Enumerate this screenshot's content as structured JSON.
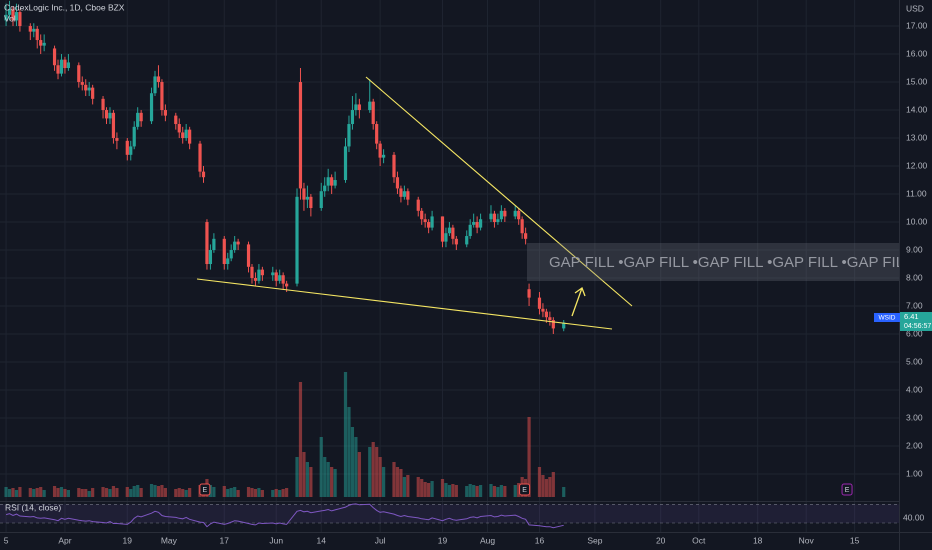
{
  "header": {
    "symbol_line": "CodexLogic Inc., 1D, Cboe BZX",
    "volume_label": "Vol",
    "currency": "USD"
  },
  "chart_data": {
    "type": "candlestick",
    "ylim": [
      0,
      17.93
    ],
    "yticks": [
      {
        "value": 1,
        "label": "1.00"
      },
      {
        "value": 2,
        "label": "2.00"
      },
      {
        "value": 3,
        "label": "3.00"
      },
      {
        "value": 4,
        "label": "4.00"
      },
      {
        "value": 5,
        "label": "5.00"
      },
      {
        "value": 6,
        "label": "6.00"
      },
      {
        "value": 7,
        "label": "7.00"
      },
      {
        "value": 8,
        "label": "8.00"
      },
      {
        "value": 9,
        "label": "9.00"
      },
      {
        "value": 10,
        "label": "10.00"
      },
      {
        "value": 11,
        "label": "11.00"
      },
      {
        "value": 12,
        "label": "12.00"
      },
      {
        "value": 13,
        "label": "13.00"
      },
      {
        "value": 14,
        "label": "14.00"
      },
      {
        "value": 15,
        "label": "15.00"
      },
      {
        "value": 16,
        "label": "16.00"
      },
      {
        "value": 17,
        "label": "17.00"
      }
    ],
    "xlim": [
      -18.75,
      240.8
    ],
    "xticks": [
      {
        "value": -17,
        "label": "5"
      },
      {
        "value": 0,
        "label": "Apr"
      },
      {
        "value": 18,
        "label": "19"
      },
      {
        "value": 30,
        "label": "May"
      },
      {
        "value": 46,
        "label": "17"
      },
      {
        "value": 61,
        "label": "Jun"
      },
      {
        "value": 74,
        "label": "14"
      },
      {
        "value": 91,
        "label": "Jul"
      },
      {
        "value": 109,
        "label": "19"
      },
      {
        "value": 122,
        "label": "Aug"
      },
      {
        "value": 137,
        "label": "16"
      },
      {
        "value": 153,
        "label": "Sep"
      },
      {
        "value": 172,
        "label": "20"
      },
      {
        "value": 183,
        "label": "Oct"
      },
      {
        "value": 200,
        "label": "18"
      },
      {
        "value": 214,
        "label": "Nov"
      },
      {
        "value": 228,
        "label": "15"
      }
    ],
    "grid": true,
    "up_color": "#26a69a",
    "down_color": "#ef5350",
    "volume_up_color": "rgba(38,166,154,0.5)",
    "volume_down_color": "rgba(239,83,80,0.5)",
    "vlim": [
      0,
      130
    ],
    "candles": [
      [
        -17,
        17.2,
        17.8,
        17.0,
        17.4,
        10,
        48
      ],
      [
        -16,
        17.4,
        17.9,
        17.2,
        17.6,
        8,
        50
      ],
      [
        -15,
        17.6,
        17.7,
        17.0,
        17.2,
        9,
        46
      ],
      [
        -14,
        17.2,
        17.8,
        17.0,
        17.5,
        7,
        49
      ],
      [
        -13,
        17.5,
        17.6,
        16.8,
        17.0,
        10,
        45
      ],
      [
        -10,
        17.0,
        17.1,
        16.5,
        16.8,
        9,
        43
      ],
      [
        -9,
        16.8,
        17.1,
        16.6,
        16.9,
        8,
        44
      ],
      [
        -8,
        16.9,
        17.0,
        16.2,
        16.5,
        9,
        41
      ],
      [
        -7,
        16.5,
        16.7,
        16.0,
        16.3,
        10,
        40
      ],
      [
        -6,
        16.3,
        16.7,
        16.1,
        16.4,
        7,
        41
      ],
      [
        -3,
        16.2,
        16.3,
        15.4,
        15.6,
        11,
        37
      ],
      [
        -2,
        15.6,
        15.8,
        15.1,
        15.3,
        9,
        35
      ],
      [
        -1,
        15.3,
        16.0,
        15.2,
        15.8,
        10,
        40
      ],
      [
        0,
        15.8,
        15.9,
        15.3,
        15.5,
        8,
        38
      ],
      [
        1,
        15.5,
        16.0,
        15.4,
        15.7,
        7,
        40
      ],
      [
        4,
        15.6,
        15.7,
        14.8,
        15.0,
        9,
        36
      ],
      [
        5,
        15.0,
        15.2,
        14.7,
        14.9,
        8,
        35
      ],
      [
        6,
        14.9,
        15.1,
        14.5,
        14.7,
        8,
        34
      ],
      [
        7,
        14.7,
        15.0,
        14.5,
        14.8,
        6,
        35
      ],
      [
        8,
        14.8,
        14.9,
        14.2,
        14.4,
        9,
        33
      ],
      [
        11,
        14.4,
        14.5,
        13.7,
        14.0,
        10,
        31
      ],
      [
        12,
        14.0,
        14.1,
        13.5,
        13.7,
        9,
        30
      ],
      [
        13,
        13.7,
        14.1,
        13.5,
        13.9,
        8,
        33
      ],
      [
        14,
        13.9,
        14.0,
        12.8,
        13.0,
        11,
        29
      ],
      [
        15,
        13.0,
        13.2,
        12.6,
        12.9,
        9,
        29
      ],
      [
        18,
        12.9,
        13.0,
        12.2,
        12.4,
        10,
        27
      ],
      [
        19,
        12.4,
        12.9,
        12.2,
        12.7,
        8,
        32
      ],
      [
        20,
        12.7,
        13.6,
        12.6,
        13.4,
        11,
        40
      ],
      [
        21,
        13.4,
        14.1,
        13.3,
        13.9,
        12,
        45
      ],
      [
        22,
        13.9,
        14.0,
        13.4,
        13.6,
        9,
        43
      ],
      [
        25,
        13.6,
        14.8,
        13.5,
        14.6,
        13,
        51
      ],
      [
        26,
        14.6,
        15.4,
        14.5,
        15.2,
        12,
        55
      ],
      [
        27,
        15.2,
        15.6,
        14.8,
        15.0,
        11,
        53
      ],
      [
        28,
        15.0,
        15.1,
        13.8,
        14.0,
        12,
        46
      ],
      [
        29,
        14.0,
        14.2,
        13.6,
        13.8,
        9,
        44
      ],
      [
        32,
        13.8,
        13.9,
        13.3,
        13.5,
        8,
        42
      ],
      [
        33,
        13.5,
        13.7,
        13.0,
        13.2,
        9,
        40
      ],
      [
        34,
        13.2,
        13.4,
        12.8,
        13.0,
        8,
        39
      ],
      [
        35,
        13.0,
        13.5,
        12.9,
        13.3,
        7,
        42
      ],
      [
        36,
        13.3,
        13.4,
        12.6,
        12.8,
        9,
        38
      ],
      [
        39,
        12.8,
        12.9,
        11.6,
        11.8,
        12,
        32
      ],
      [
        40,
        11.8,
        12.0,
        11.4,
        11.6,
        10,
        31
      ],
      [
        41,
        10.0,
        10.1,
        8.3,
        8.5,
        18,
        22
      ],
      [
        42,
        8.5,
        9.2,
        8.3,
        9.0,
        12,
        28
      ],
      [
        43,
        9.0,
        9.6,
        8.9,
        9.4,
        10,
        32
      ],
      [
        46,
        9.4,
        9.5,
        8.3,
        8.5,
        11,
        27
      ],
      [
        47,
        8.5,
        8.9,
        8.3,
        8.7,
        8,
        29
      ],
      [
        48,
        8.7,
        9.2,
        8.6,
        9.0,
        9,
        32
      ],
      [
        49,
        9.0,
        9.5,
        8.9,
        9.3,
        10,
        35
      ],
      [
        50,
        9.3,
        9.4,
        9.0,
        9.2,
        7,
        34
      ],
      [
        53,
        9.2,
        9.3,
        8.2,
        8.4,
        10,
        29
      ],
      [
        54,
        8.4,
        8.5,
        7.8,
        8.0,
        9,
        27
      ],
      [
        55,
        8.0,
        8.2,
        7.7,
        7.9,
        8,
        26
      ],
      [
        56,
        7.9,
        8.5,
        7.8,
        8.3,
        9,
        30
      ],
      [
        57,
        8.3,
        8.4,
        7.9,
        8.1,
        7,
        29
      ],
      [
        60,
        8.1,
        8.4,
        7.9,
        8.2,
        7,
        30
      ],
      [
        61,
        8.2,
        8.3,
        7.7,
        7.9,
        8,
        28
      ],
      [
        62,
        7.9,
        8.3,
        7.8,
        8.1,
        7,
        30
      ],
      [
        63,
        8.1,
        8.2,
        7.6,
        7.8,
        8,
        28
      ],
      [
        64,
        7.8,
        7.9,
        7.5,
        7.7,
        9,
        27
      ],
      [
        67,
        7.8,
        11.2,
        7.7,
        10.9,
        40,
        55
      ],
      [
        68,
        15.0,
        15.5,
        10.8,
        11.2,
        115,
        57
      ],
      [
        69,
        11.2,
        11.4,
        10.4,
        10.8,
        45,
        54
      ],
      [
        70,
        10.8,
        11.3,
        10.5,
        10.9,
        35,
        55
      ],
      [
        71,
        10.9,
        11.0,
        10.2,
        10.5,
        30,
        52
      ],
      [
        74,
        10.5,
        11.4,
        10.4,
        11.1,
        60,
        56
      ],
      [
        75,
        11.1,
        11.6,
        10.9,
        11.3,
        40,
        57
      ],
      [
        76,
        11.3,
        11.9,
        11.1,
        11.6,
        35,
        59
      ],
      [
        77,
        11.6,
        11.7,
        11.0,
        11.3,
        30,
        56
      ],
      [
        78,
        11.3,
        11.8,
        11.2,
        11.5,
        28,
        58
      ],
      [
        81,
        11.5,
        13.0,
        11.4,
        12.7,
        125,
        64
      ],
      [
        82,
        12.7,
        13.8,
        12.5,
        13.5,
        90,
        68
      ],
      [
        83,
        13.5,
        14.5,
        13.3,
        14.0,
        70,
        70
      ],
      [
        84,
        14.0,
        14.6,
        13.8,
        14.2,
        60,
        71
      ],
      [
        85,
        14.2,
        14.4,
        13.7,
        14.0,
        45,
        69
      ],
      [
        88,
        14.0,
        15.1,
        13.9,
        14.3,
        50,
        70
      ],
      [
        89,
        14.3,
        14.4,
        13.3,
        13.5,
        55,
        63
      ],
      [
        90,
        13.5,
        13.6,
        12.6,
        12.8,
        50,
        57
      ],
      [
        91,
        12.8,
        12.9,
        12.0,
        12.3,
        40,
        53
      ],
      [
        92,
        12.3,
        12.6,
        12.1,
        12.4,
        30,
        54
      ],
      [
        95,
        12.4,
        12.5,
        11.4,
        11.6,
        35,
        49
      ],
      [
        96,
        11.6,
        11.8,
        11.0,
        11.2,
        30,
        46
      ],
      [
        97,
        11.2,
        11.3,
        10.7,
        10.9,
        28,
        44
      ],
      [
        98,
        10.9,
        11.3,
        10.8,
        11.1,
        20,
        46
      ],
      [
        99,
        11.1,
        11.2,
        10.6,
        10.8,
        22,
        44
      ],
      [
        102,
        10.8,
        10.9,
        10.2,
        10.4,
        20,
        41
      ],
      [
        103,
        10.4,
        10.5,
        9.9,
        10.1,
        18,
        39
      ],
      [
        104,
        10.1,
        10.3,
        9.8,
        10.0,
        15,
        38
      ],
      [
        105,
        10.0,
        10.1,
        9.6,
        9.8,
        14,
        37
      ],
      [
        106,
        9.8,
        10.4,
        9.7,
        10.2,
        16,
        41
      ],
      [
        109,
        10.2,
        10.2,
        9.1,
        9.3,
        18,
        35
      ],
      [
        110,
        9.3,
        9.8,
        9.1,
        9.6,
        14,
        38
      ],
      [
        111,
        9.6,
        10.0,
        9.5,
        9.8,
        12,
        40
      ],
      [
        112,
        9.8,
        9.9,
        9.2,
        9.4,
        13,
        37
      ],
      [
        113,
        9.4,
        9.5,
        9.0,
        9.2,
        12,
        36
      ],
      [
        116,
        9.2,
        9.7,
        9.1,
        9.5,
        11,
        39
      ],
      [
        117,
        9.5,
        10.1,
        9.4,
        9.9,
        13,
        42
      ],
      [
        118,
        9.9,
        10.3,
        9.8,
        10.0,
        12,
        43
      ],
      [
        119,
        10.0,
        10.2,
        9.6,
        9.8,
        11,
        41
      ],
      [
        120,
        9.8,
        10.3,
        9.7,
        10.1,
        12,
        44
      ],
      [
        123,
        10.1,
        10.6,
        10.0,
        10.3,
        13,
        46
      ],
      [
        124,
        10.3,
        10.4,
        9.8,
        10.0,
        11,
        43
      ],
      [
        125,
        10.0,
        10.3,
        9.9,
        10.1,
        10,
        44
      ],
      [
        126,
        10.1,
        10.6,
        10.0,
        10.4,
        12,
        47
      ],
      [
        127,
        10.4,
        10.5,
        10.0,
        10.2,
        11,
        45
      ],
      [
        130,
        10.2,
        10.6,
        10.1,
        10.4,
        12,
        47
      ],
      [
        131,
        10.4,
        10.5,
        9.9,
        10.1,
        14,
        44
      ],
      [
        132,
        10.1,
        10.2,
        9.4,
        9.6,
        20,
        40
      ],
      [
        133,
        9.6,
        9.8,
        9.2,
        9.4,
        18,
        38
      ],
      [
        134,
        7.6,
        7.8,
        7.0,
        7.3,
        80,
        26
      ],
      [
        137,
        7.3,
        7.5,
        6.7,
        6.9,
        30,
        24
      ],
      [
        138,
        6.9,
        7.1,
        6.6,
        6.8,
        22,
        23
      ],
      [
        139,
        6.8,
        6.9,
        6.4,
        6.6,
        18,
        22
      ],
      [
        140,
        6.6,
        6.8,
        6.3,
        6.5,
        20,
        22
      ],
      [
        141,
        6.5,
        6.6,
        6.0,
        6.2,
        25,
        20
      ],
      [
        144,
        6.2,
        6.5,
        6.1,
        6.41,
        10,
        25
      ]
    ],
    "events": [
      {
        "x": 40.4,
        "label": "E"
      },
      {
        "x": 132.7,
        "label": "E"
      },
      {
        "x": 225.8,
        "label": "E"
      }
    ],
    "annotation": "GAP FILL •GAP FILL •GAP FILL •GAP FILL •GAP FILL",
    "price_tag": {
      "symbol": "WSID",
      "price": "6.41",
      "countdown": "04:56:57"
    },
    "rsi": {
      "label": "RSI (14, close)",
      "color": "#7e57c2",
      "ylim": [
        15,
        75
      ],
      "band": [
        30,
        70
      ],
      "yticks": [
        {
          "value": 40,
          "label": "40.00"
        }
      ]
    }
  }
}
